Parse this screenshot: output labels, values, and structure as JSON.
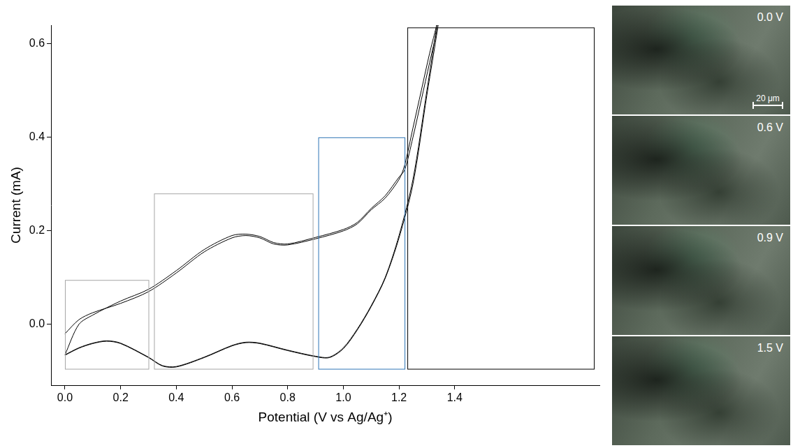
{
  "chart_data": {
    "type": "line",
    "x_label": "Potential (V vs Ag/Ag⁺)",
    "y_label": "Current (mA)",
    "series": [
      {
        "color": "#000000",
        "line_style": "solid",
        "marker": "none",
        "x": [
          0,
          0.05,
          0.1,
          0.2,
          0.3,
          0.4,
          0.5,
          0.6,
          0.65,
          0.7,
          0.75,
          0.8,
          0.9,
          1.0,
          1.05,
          1.1,
          1.15,
          1.2,
          1.22,
          1.25,
          1.28,
          1.31,
          1.335,
          1.3,
          1.25,
          1.2,
          1.15,
          1.1,
          1.05,
          1.0,
          0.95,
          0.9,
          0.8,
          0.7,
          0.65,
          0.6,
          0.5,
          0.4,
          0.35,
          0.3,
          0.2,
          0.15,
          0.1,
          0.05,
          0
        ],
        "values": [
          -0.02,
          0.01,
          0.025,
          0.045,
          0.07,
          0.11,
          0.155,
          0.185,
          0.19,
          0.185,
          0.172,
          0.17,
          0.183,
          0.2,
          0.215,
          0.245,
          0.27,
          0.31,
          0.34,
          0.42,
          0.5,
          0.58,
          0.64,
          0.5,
          0.31,
          0.19,
          0.1,
          0.04,
          -0.01,
          -0.05,
          -0.07,
          -0.068,
          -0.055,
          -0.04,
          -0.038,
          -0.045,
          -0.07,
          -0.09,
          -0.088,
          -0.07,
          -0.04,
          -0.035,
          -0.04,
          -0.05,
          -0.065
        ]
      },
      {
        "color": "#000000",
        "line_style": "solid",
        "marker": "none",
        "x": [
          0,
          0.05,
          0.1,
          0.2,
          0.3,
          0.4,
          0.5,
          0.6,
          0.65,
          0.7,
          0.75,
          0.8,
          0.9,
          1.0,
          1.05,
          1.1,
          1.15,
          1.2,
          1.22,
          1.25,
          1.28,
          1.31,
          1.34,
          1.3,
          1.25,
          1.2,
          1.15,
          1.1,
          1.05,
          1.0,
          0.95,
          0.9,
          0.8,
          0.7,
          0.65,
          0.6,
          0.5,
          0.4,
          0.35,
          0.3,
          0.2,
          0.15,
          0.1,
          0.05,
          0
        ],
        "values": [
          -0.065,
          0.0,
          0.02,
          0.05,
          0.075,
          0.115,
          0.16,
          0.19,
          0.193,
          0.188,
          0.175,
          0.172,
          0.186,
          0.203,
          0.218,
          0.248,
          0.275,
          0.315,
          0.33,
          0.4,
          0.48,
          0.56,
          0.64,
          0.49,
          0.3,
          0.185,
          0.098,
          0.038,
          -0.012,
          -0.052,
          -0.071,
          -0.069,
          -0.056,
          -0.041,
          -0.039,
          -0.046,
          -0.071,
          -0.091,
          -0.089,
          -0.071,
          -0.041,
          -0.036,
          -0.041,
          -0.051,
          -0.066
        ]
      }
    ],
    "xlim": [
      -0.05,
      1.92
    ],
    "xticks": [
      {
        "value": 0,
        "label": "0.0"
      },
      0.2,
      0.4,
      0.6,
      0.8,
      {
        "value": 1,
        "label": "1.0"
      },
      1.2,
      1.4
    ],
    "ylim": [
      -0.13,
      0.64
    ],
    "yticks": [
      {
        "value": 0,
        "label": "0.0"
      },
      0.2,
      0.4,
      0.6
    ],
    "grid": false,
    "regions": [
      {
        "x": [
          0,
          0.3
        ],
        "y": [
          -0.095,
          0.095
        ],
        "color": "#a6a6a6"
      },
      {
        "x": [
          0.32,
          0.89
        ],
        "y": [
          -0.095,
          0.28
        ],
        "color": "#a6a6a6"
      },
      {
        "x": [
          0.91,
          1.22
        ],
        "y": [
          -0.095,
          0.4
        ],
        "color": "#2e75b6"
      },
      {
        "x": [
          1.23,
          1.9
        ],
        "y": [
          -0.095,
          0.635
        ],
        "color": "#000000"
      }
    ]
  },
  "panels": [
    {
      "label": "0.0 V",
      "scale_bar": "20 μm"
    },
    {
      "label": "0.6 V"
    },
    {
      "label": "0.9 V"
    },
    {
      "label": "1.5 V"
    }
  ]
}
